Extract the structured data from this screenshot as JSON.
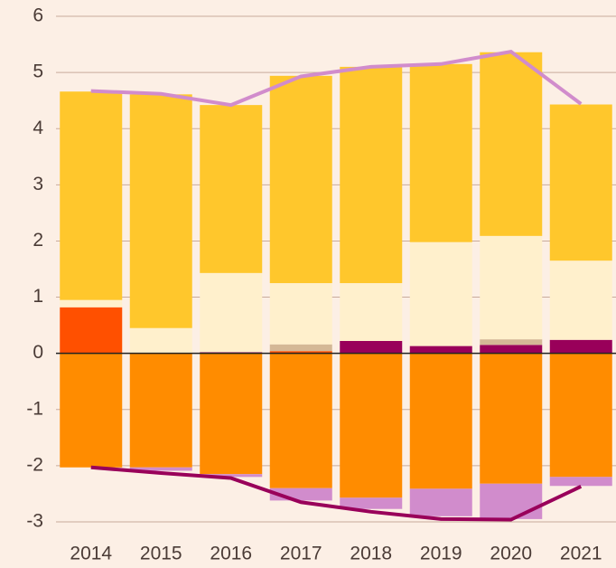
{
  "chart_data": {
    "type": "bar",
    "categories": [
      "2014",
      "2015",
      "2016",
      "2017",
      "2018",
      "2019",
      "2020",
      "2021"
    ],
    "series": [
      {
        "color": "#ff5000",
        "values": [
          0.82,
          0,
          0,
          0.04,
          0,
          0,
          0,
          0
        ]
      },
      {
        "color": "#99005a",
        "values": [
          0,
          0,
          0.02,
          0,
          0.22,
          0.13,
          0.15,
          0.24
        ]
      },
      {
        "color": "#d4b896",
        "values": [
          0,
          0,
          0,
          0.12,
          0,
          0,
          0.1,
          0
        ]
      },
      {
        "color": "#fff0cc",
        "values": [
          0.13,
          0.45,
          1.41,
          1.09,
          1.03,
          1.85,
          1.84,
          1.41
        ]
      },
      {
        "color": "#ffc72c",
        "values": [
          3.71,
          4.16,
          2.99,
          3.69,
          3.85,
          3.17,
          3.27,
          2.78
        ]
      },
      {
        "color": "#ff8c00",
        "values": [
          -2.03,
          -2.03,
          -2.15,
          -2.4,
          -2.57,
          -2.41,
          -2.32,
          -2.2
        ]
      },
      {
        "color": "#d18ccc",
        "values": [
          0,
          -0.06,
          -0.05,
          -0.22,
          -0.2,
          -0.49,
          -0.63,
          -0.16
        ]
      }
    ],
    "lines": [
      {
        "color": "#d18ccc",
        "values": [
          4.67,
          4.62,
          4.42,
          4.93,
          5.1,
          5.15,
          5.37,
          4.44
        ]
      },
      {
        "color": "#99005a",
        "values": [
          -2.03,
          -2.13,
          -2.22,
          -2.65,
          -2.82,
          -2.95,
          -2.96,
          -2.37
        ]
      }
    ],
    "ylim": [
      -3,
      6
    ],
    "yticks": [
      -3,
      -2,
      -1,
      0,
      1,
      2,
      3,
      4,
      5,
      6
    ],
    "grid": true
  }
}
